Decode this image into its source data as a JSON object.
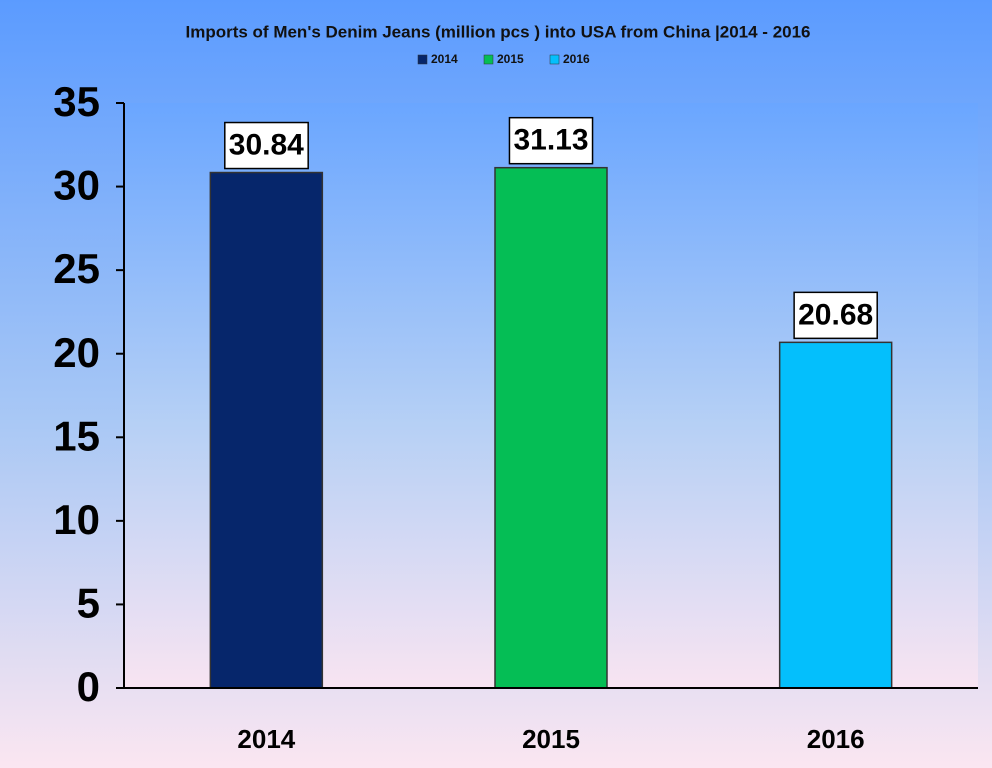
{
  "chart_data": {
    "type": "bar",
    "title": "Imports of Men's Denim Jeans (million pcs ) into USA from China |2014 - 2016",
    "categories": [
      "2014",
      "2015",
      "2016"
    ],
    "values": [
      30.84,
      31.13,
      20.68
    ],
    "colors": [
      "#06266b",
      "#05be55",
      "#04bffc"
    ],
    "ylim": [
      0,
      35
    ],
    "yticks": [
      0,
      5,
      10,
      15,
      20,
      25,
      30,
      35
    ],
    "legend": "top"
  }
}
